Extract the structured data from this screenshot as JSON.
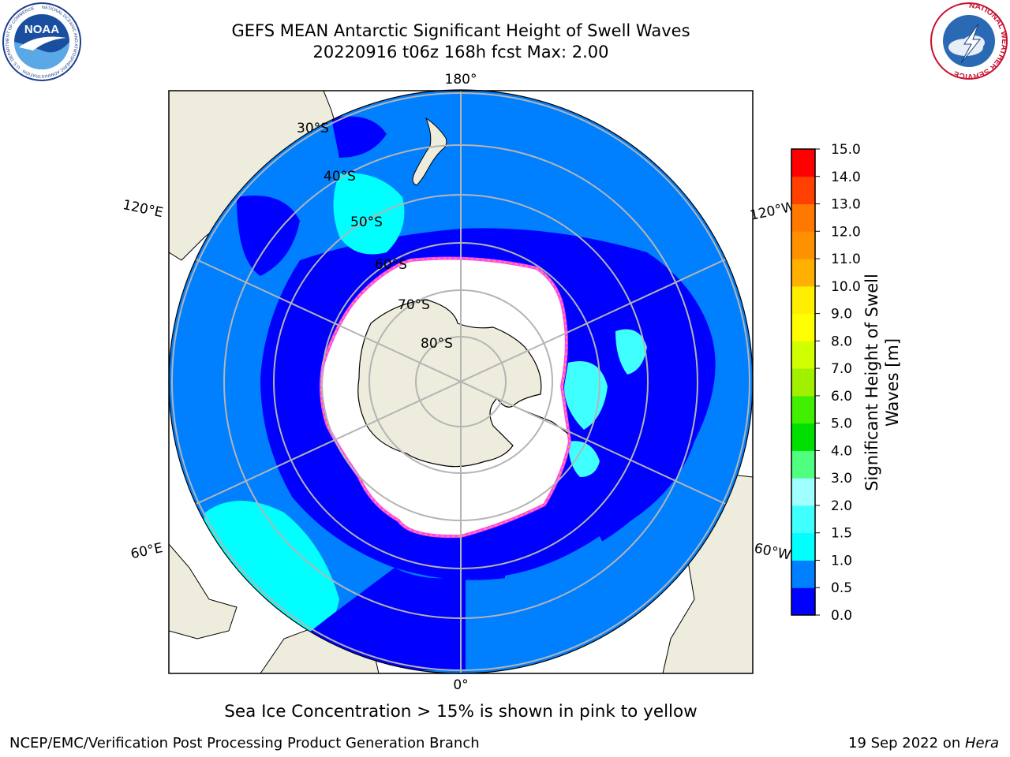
{
  "header": {
    "title_line1": "GEFS MEAN Antarctic Significant Height of Swell Waves",
    "title_line2": "20220916 t06z 168h fcst   Max: 2.00"
  },
  "logos": {
    "noaa": {
      "text": "NOAA",
      "ring_text": "NATIONAL OCEANIC AND ATMOSPHERIC ADMINISTRATION · U.S. DEPARTMENT OF COMMERCE"
    },
    "nws": {
      "ring_text": "NATIONAL WEATHER SERVICE"
    }
  },
  "map": {
    "lon_labels": [
      "180°",
      "120°E",
      "120°W",
      "60°E",
      "60°W",
      "0°"
    ],
    "lat_labels": [
      "30°S",
      "40°S",
      "50°S",
      "60°S",
      "70°S",
      "80°S"
    ],
    "colors": {
      "ocean_dark": "#0000ff",
      "ocean_mid": "#0080ff",
      "ocean_light": "#00ffff",
      "land": "#eeecdc",
      "ice": "#ffffff",
      "ice_edge": "#ff44ff",
      "grid": "#b4b4b4"
    }
  },
  "colorbar": {
    "title_line1": "Significant Height of Swell",
    "title_line2": "Waves [m]",
    "ticks": [
      "0.0",
      "0.5",
      "1.0",
      "1.5",
      "2.0",
      "3.0",
      "4.0",
      "5.0",
      "6.0",
      "7.0",
      "8.0",
      "9.0",
      "10.0",
      "11.0",
      "12.0",
      "13.0",
      "14.0",
      "15.0"
    ],
    "colors": [
      "#0000ff",
      "#0080ff",
      "#00ffff",
      "#40ffff",
      "#a0ffff",
      "#50ff80",
      "#00e000",
      "#40f000",
      "#a0f000",
      "#d0ff00",
      "#ffff00",
      "#ffee00",
      "#ffb000",
      "#ff9000",
      "#ff7800",
      "#ff4000",
      "#ff0000"
    ]
  },
  "caption": "Sea Ice Concentration > 15% is shown in pink to yellow",
  "footer": {
    "left": "NCEP/EMC/Verification Post Processing Product Generation Branch",
    "right_prefix": "19 Sep 2022 on ",
    "right_italic": "Hera"
  }
}
